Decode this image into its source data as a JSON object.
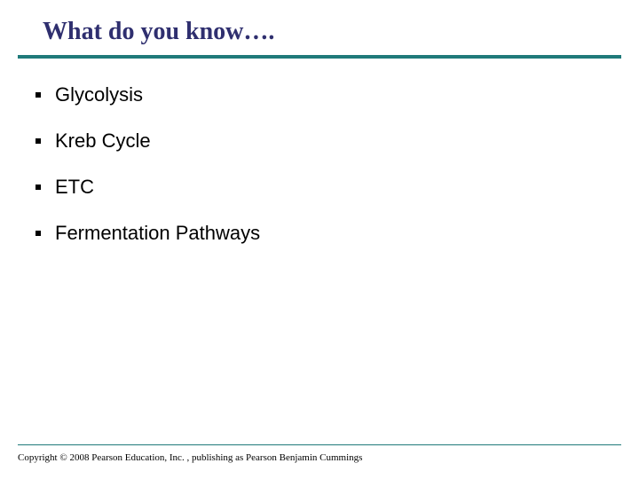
{
  "title": "What do you know….",
  "title_color": "#2f2f6f",
  "title_fontsize": 28,
  "title_font": "Times New Roman",
  "rule_color": "#1f7a7a",
  "rule_height": 4,
  "bullets": [
    "Glycolysis",
    "Kreb Cycle",
    "ETC",
    "Fermentation Pathways"
  ],
  "bullet_fontsize": 22,
  "bullet_color": "#000000",
  "footer": "Copyright © 2008 Pearson Education, Inc. , publishing as Pearson Benjamin Cummings",
  "footer_fontsize": 11,
  "background_color": "#ffffff",
  "slide_width": 720,
  "slide_height": 540
}
